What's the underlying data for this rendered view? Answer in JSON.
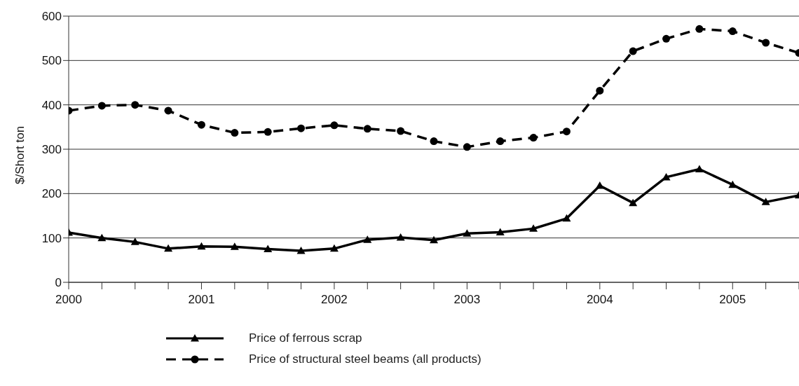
{
  "chart_data": {
    "type": "line",
    "ylabel": "$/Short ton",
    "x": [
      2000,
      2000.25,
      2000.5,
      2000.75,
      2001,
      2001.25,
      2001.5,
      2001.75,
      2002,
      2002.25,
      2002.5,
      2002.75,
      2003,
      2003.25,
      2003.5,
      2003.75,
      2004,
      2004.25,
      2004.5,
      2004.75,
      2005,
      2005.25,
      2005.5
    ],
    "series": [
      {
        "name": "Price of ferrous scrap",
        "color": "#000000",
        "marker": "triangle",
        "line_style": "solid",
        "values": [
          112,
          100,
          91,
          76,
          81,
          80,
          75,
          71,
          76,
          96,
          101,
          95,
          110,
          113,
          121,
          144,
          218,
          179,
          237,
          255,
          220,
          181,
          196
        ]
      },
      {
        "name": "Price of structural steel beams (all products)",
        "color": "#000000",
        "marker": "circle",
        "line_style": "dashed",
        "values": [
          387,
          398,
          400,
          387,
          355,
          337,
          339,
          347,
          354,
          346,
          341,
          318,
          305,
          318,
          326,
          340,
          432,
          521,
          549,
          571,
          566,
          540,
          517
        ]
      }
    ],
    "xlim": [
      2000,
      2005.5
    ],
    "xticks": [
      2000,
      {
        "value": 2000.25,
        "label": null
      },
      {
        "value": 2000.5,
        "label": null
      },
      {
        "value": 2000.75,
        "label": null
      },
      2001,
      {
        "value": 2001.25,
        "label": null
      },
      {
        "value": 2001.5,
        "label": null
      },
      {
        "value": 2001.75,
        "label": null
      },
      2002,
      {
        "value": 2002.25,
        "label": null
      },
      {
        "value": 2002.5,
        "label": null
      },
      {
        "value": 2002.75,
        "label": null
      },
      2003,
      {
        "value": 2003.25,
        "label": null
      },
      {
        "value": 2003.5,
        "label": null
      },
      {
        "value": 2003.75,
        "label": null
      },
      2004,
      {
        "value": 2004.25,
        "label": null
      },
      {
        "value": 2004.5,
        "label": null
      },
      {
        "value": 2004.75,
        "label": null
      },
      2005,
      {
        "value": 2005.25,
        "label": null
      },
      {
        "value": 2005.5,
        "label": null
      }
    ],
    "ylim": [
      0,
      600
    ],
    "yticks": [
      0,
      100,
      200,
      300,
      400,
      500,
      600
    ],
    "grid": "y",
    "legend": "bottom"
  }
}
